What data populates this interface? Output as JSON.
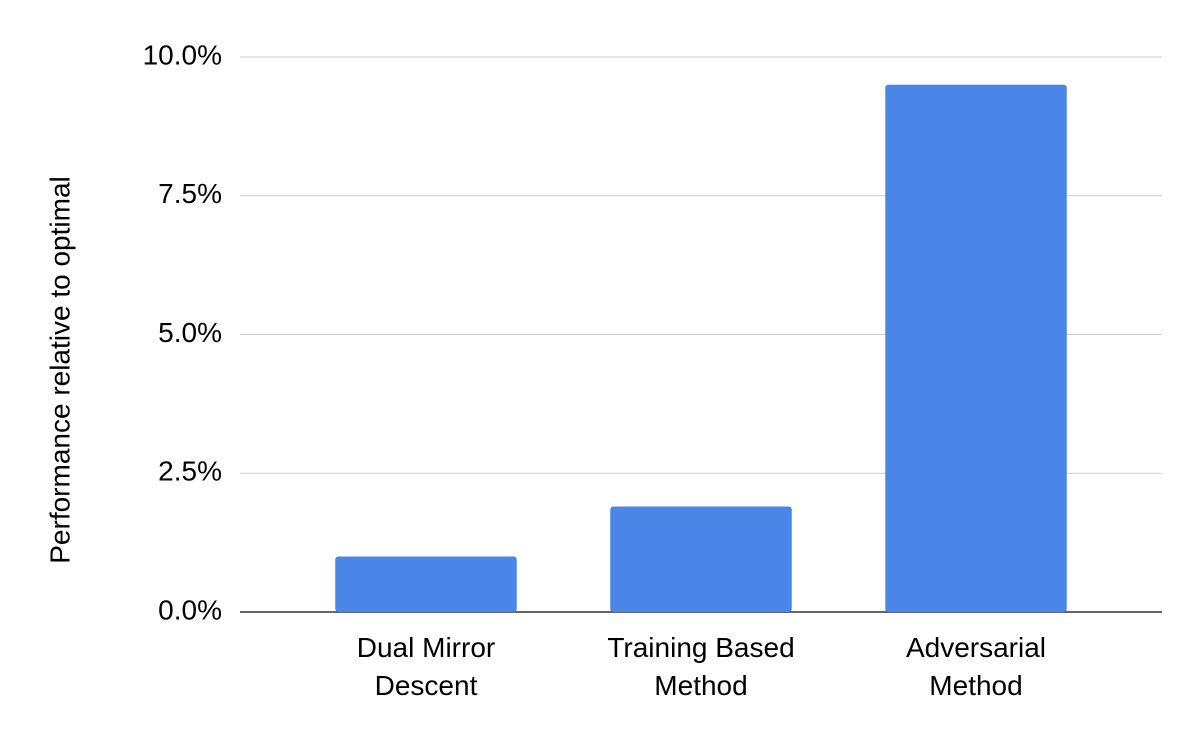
{
  "chart_data": {
    "type": "bar",
    "y_axis_label": "Performance relative to optimal",
    "categories": [
      "Dual Mirror Descent",
      "Training Based Method",
      "Adversarial Method"
    ],
    "values": [
      1.0,
      1.9,
      9.5
    ],
    "color": "#4a86e8",
    "ylim": [
      0,
      10
    ],
    "yticks": [
      {
        "value": 0,
        "label": "0.0%"
      },
      {
        "value": 2.5,
        "label": "2.5%"
      },
      {
        "value": 5,
        "label": "5.0%"
      },
      {
        "value": 7.5,
        "label": "7.5%"
      },
      {
        "value": 10,
        "label": "10.0%"
      }
    ],
    "grid": true
  }
}
